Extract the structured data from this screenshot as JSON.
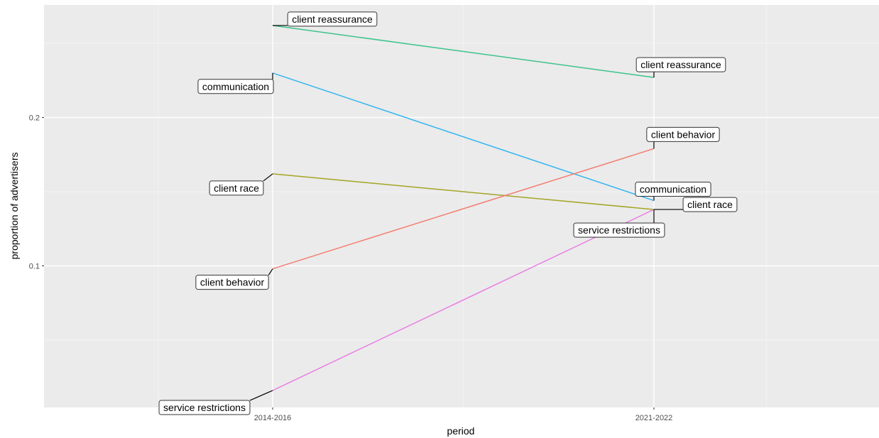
{
  "chart_data": {
    "type": "line",
    "categories": [
      "2014-2016",
      "2021-2022"
    ],
    "xlabel": "period",
    "ylabel": "proportion of advertisers",
    "ylim": [
      0.0,
      0.26
    ],
    "yticks": [
      0.1,
      0.2
    ],
    "ytick_labels": [
      "0.1",
      "0.2"
    ],
    "grid": true,
    "legend": "none",
    "series": [
      {
        "name": "client reassurance",
        "color": "#3ec38c",
        "values": [
          0.262,
          0.227
        ]
      },
      {
        "name": "communication",
        "color": "#34b6f0",
        "values": [
          0.23,
          0.144
        ]
      },
      {
        "name": "client race",
        "color": "#a3a525",
        "values": [
          0.162,
          0.138
        ]
      },
      {
        "name": "client behavior",
        "color": "#f37d72",
        "values": [
          0.098,
          0.179
        ]
      },
      {
        "name": "service restrictions",
        "color": "#e97fe4",
        "values": [
          0.016,
          0.138
        ]
      }
    ]
  }
}
